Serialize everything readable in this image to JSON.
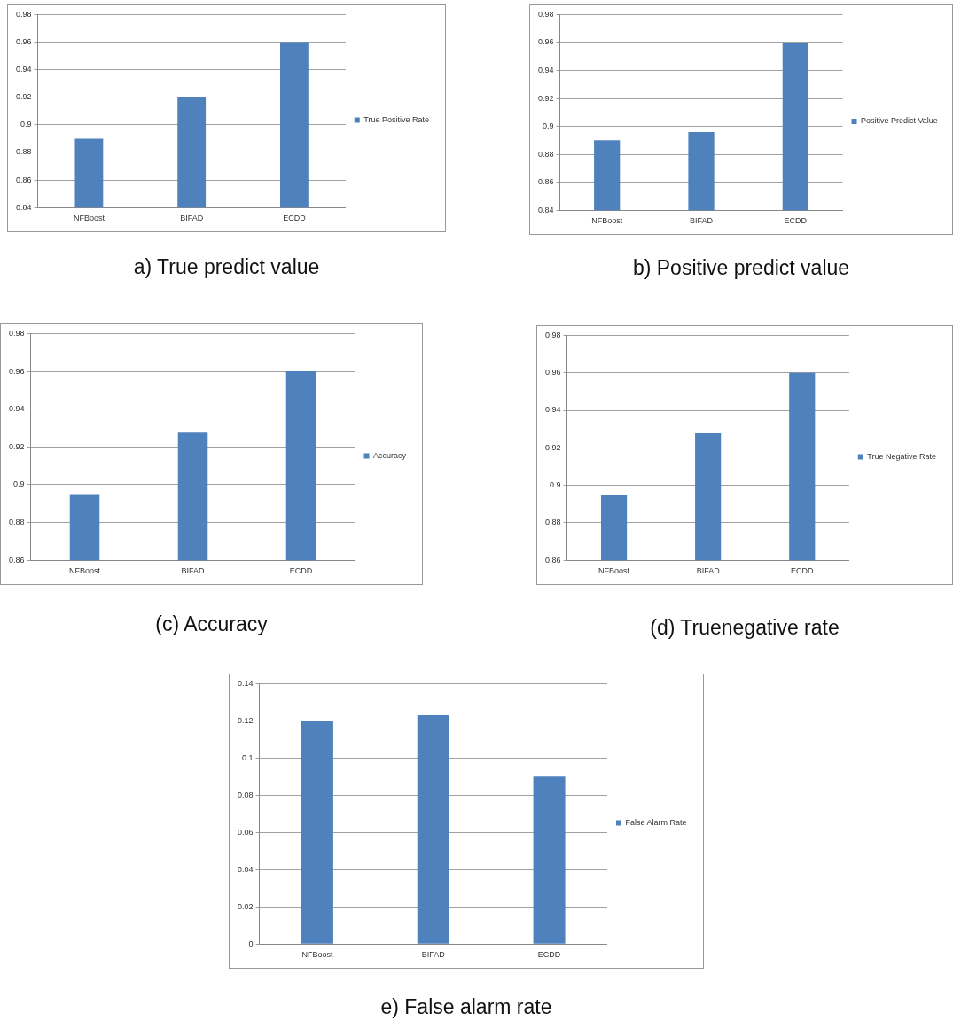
{
  "chart_data": [
    {
      "type": "bar",
      "title": "a) True predict value",
      "categories": [
        "NFBoost",
        "BIFAD",
        "ECDD"
      ],
      "series": [
        {
          "name": "True Positive Rate",
          "color": "#4f81bd",
          "values": [
            0.89,
            0.92,
            0.96
          ]
        }
      ],
      "ylim": [
        0.84,
        0.98
      ],
      "yticks": [
        0.84,
        0.86,
        0.88,
        0.9,
        0.92,
        0.94,
        0.96,
        0.98
      ],
      "grid": "y",
      "legend": "right"
    },
    {
      "type": "bar",
      "title": "b) Positive predict value",
      "categories": [
        "NFBoost",
        "BIFAD",
        "ECDD"
      ],
      "series": [
        {
          "name": "Positive Predict Value",
          "color": "#4f81bd",
          "values": [
            0.89,
            0.896,
            0.96
          ]
        }
      ],
      "ylim": [
        0.84,
        0.98
      ],
      "yticks": [
        0.84,
        0.86,
        0.88,
        0.9,
        0.92,
        0.94,
        0.96,
        0.98
      ],
      "grid": "y",
      "legend": "right"
    },
    {
      "type": "bar",
      "title": "(c) Accuracy",
      "categories": [
        "NFBoost",
        "BIFAD",
        "ECDD"
      ],
      "series": [
        {
          "name": "Accuracy",
          "color": "#4f81bd",
          "values": [
            0.895,
            0.928,
            0.96
          ]
        }
      ],
      "ylim": [
        0.86,
        0.98
      ],
      "yticks": [
        0.86,
        0.88,
        0.9,
        0.92,
        0.94,
        0.96,
        0.98
      ],
      "grid": "y",
      "legend": "right"
    },
    {
      "type": "bar",
      "title": "(d) Truenegative rate",
      "categories": [
        "NFBoost",
        "BIFAD",
        "ECDD"
      ],
      "series": [
        {
          "name": "True Negative Rate",
          "color": "#4f81bd",
          "values": [
            0.895,
            0.928,
            0.96
          ]
        }
      ],
      "ylim": [
        0.86,
        0.98
      ],
      "yticks": [
        0.86,
        0.88,
        0.9,
        0.92,
        0.94,
        0.96,
        0.98
      ],
      "grid": "y",
      "legend": "right"
    },
    {
      "type": "bar",
      "title": "e) False alarm rate",
      "categories": [
        "NFBoost",
        "BIFAD",
        "ECDD"
      ],
      "series": [
        {
          "name": "False Alarm Rate",
          "color": "#4f81bd",
          "values": [
            0.12,
            0.123,
            0.09
          ]
        }
      ],
      "ylim": [
        0,
        0.14
      ],
      "yticks": [
        0,
        0.02,
        0.04,
        0.06,
        0.08,
        0.1,
        0.12,
        0.14
      ],
      "grid": "y",
      "legend": "right"
    }
  ]
}
